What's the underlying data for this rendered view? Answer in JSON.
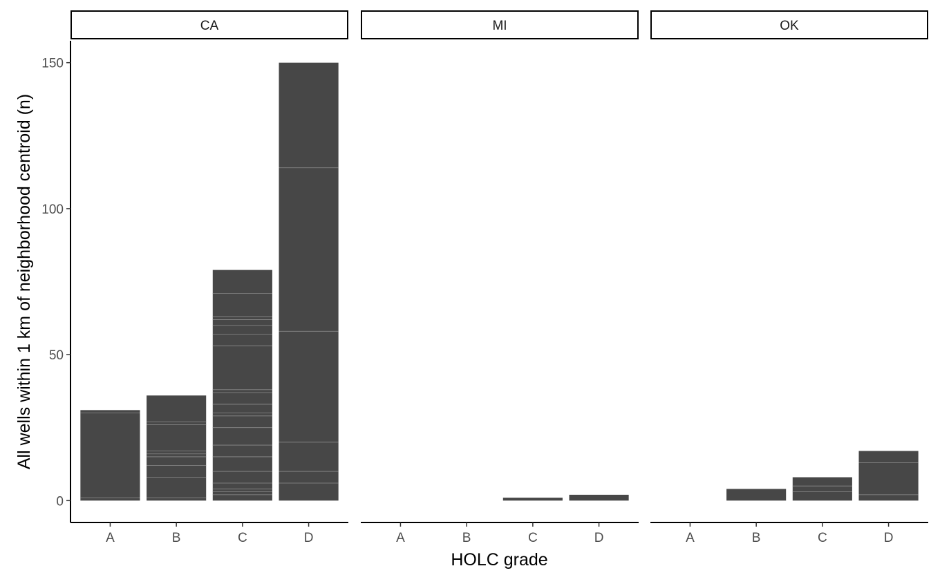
{
  "chart_data": {
    "type": "bar",
    "facet_layout": "single-row",
    "ylabel": "All wells within 1 km of neighborhood centroid (n)",
    "xlabel": "HOLC grade",
    "ylim": [
      -7.5,
      157.5
    ],
    "yticks": [
      0,
      50,
      100,
      150
    ],
    "categories": [
      "A",
      "B",
      "C",
      "D"
    ],
    "bar_color": "#474747",
    "segment_line_color": "#8c8c8c",
    "grid": false,
    "facets": [
      {
        "name": "CA",
        "values": [
          31,
          36,
          79,
          150
        ],
        "segment_boundaries": [
          [
            1,
            30
          ],
          [
            1,
            8,
            12,
            15,
            16,
            17,
            26,
            27
          ],
          [
            2,
            3,
            4,
            6,
            10,
            15,
            19,
            25,
            29,
            30,
            33,
            37,
            38,
            53,
            57,
            60,
            62,
            63,
            71
          ],
          [
            6,
            10,
            20,
            58,
            114
          ]
        ]
      },
      {
        "name": "MI",
        "values": [
          0,
          0,
          1,
          2
        ],
        "segment_boundaries": [
          [],
          [],
          [],
          []
        ]
      },
      {
        "name": "OK",
        "values": [
          0,
          4,
          8,
          17
        ],
        "segment_boundaries": [
          [],
          [],
          [
            3,
            5
          ],
          [
            2,
            13
          ]
        ]
      }
    ]
  }
}
